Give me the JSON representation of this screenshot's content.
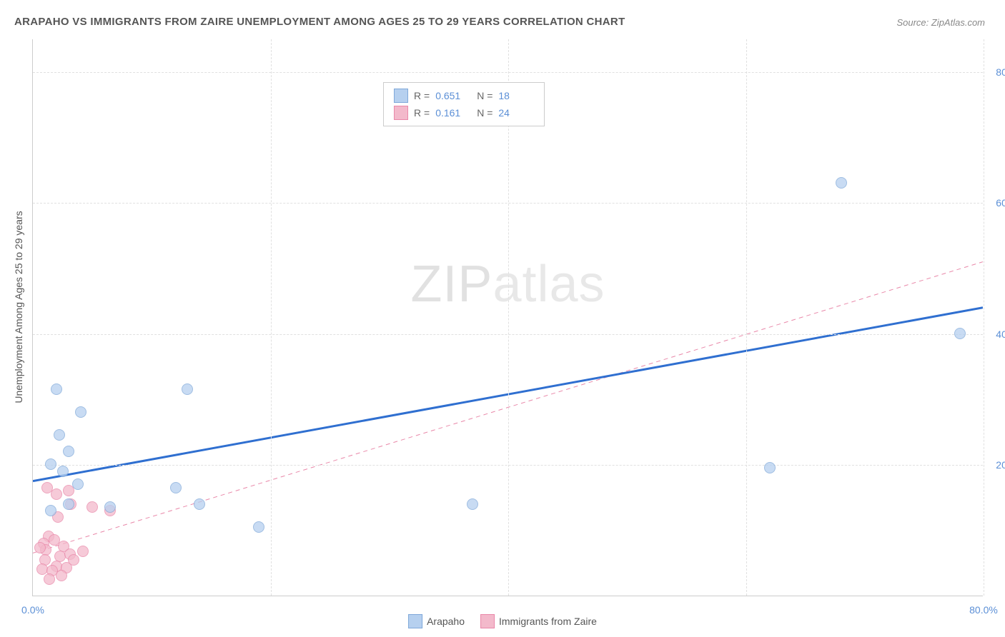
{
  "title": "ARAPAHO VS IMMIGRANTS FROM ZAIRE UNEMPLOYMENT AMONG AGES 25 TO 29 YEARS CORRELATION CHART",
  "source": "Source: ZipAtlas.com",
  "y_axis_label": "Unemployment Among Ages 25 to 29 years",
  "watermark_bold": "ZIP",
  "watermark_thin": "atlas",
  "chart": {
    "type": "scatter",
    "xlim": [
      0,
      80
    ],
    "ylim": [
      0,
      85
    ],
    "x_ticks": [
      0,
      20,
      40,
      60,
      80
    ],
    "y_ticks": [
      20,
      40,
      60,
      80
    ],
    "x_tick_labels": [
      "0.0%",
      "",
      "",
      "",
      "80.0%"
    ],
    "y_tick_labels": [
      "20.0%",
      "40.0%",
      "60.0%",
      "80.0%"
    ],
    "grid_color": "#e0e0e0",
    "background_color": "#ffffff",
    "axis_color": "#cccccc",
    "tick_label_color": "#5b8fd6",
    "tick_fontsize": 14,
    "marker_radius": 8,
    "marker_stroke_width": 1
  },
  "series": {
    "arapaho": {
      "label": "Arapaho",
      "fill": "#b6d0ef",
      "stroke": "#7fa8d9",
      "opacity": 0.75,
      "r_value": "0.651",
      "n_value": "18",
      "trend": {
        "x1": 0,
        "y1": 17.5,
        "x2": 80,
        "y2": 44,
        "stroke": "#2f6fd0",
        "width": 3,
        "dash": ""
      },
      "points": [
        [
          2,
          31.5
        ],
        [
          4,
          28
        ],
        [
          6.5,
          13.5
        ],
        [
          13,
          31.5
        ],
        [
          3,
          22
        ],
        [
          2.2,
          24.5
        ],
        [
          1.5,
          20
        ],
        [
          2.5,
          19
        ],
        [
          3.8,
          17
        ],
        [
          12,
          16.5
        ],
        [
          14,
          14
        ],
        [
          19,
          10.5
        ],
        [
          37,
          14
        ],
        [
          62,
          19.5
        ],
        [
          68,
          63
        ],
        [
          78,
          40
        ],
        [
          1.5,
          13
        ],
        [
          3,
          14
        ]
      ]
    },
    "zaire": {
      "label": "Immigrants from Zaire",
      "fill": "#f3b9cb",
      "stroke": "#e988a9",
      "opacity": 0.75,
      "r_value": "0.161",
      "n_value": "24",
      "trend": {
        "x1": 0,
        "y1": 6.5,
        "x2": 80,
        "y2": 51,
        "stroke": "#e988a9",
        "width": 1,
        "dash": "6,5"
      },
      "points": [
        [
          1.2,
          16.5
        ],
        [
          2,
          15.5
        ],
        [
          3,
          16
        ],
        [
          3.2,
          14
        ],
        [
          5,
          13.5
        ],
        [
          2.1,
          12
        ],
        [
          6.5,
          13
        ],
        [
          1.3,
          9
        ],
        [
          0.9,
          8
        ],
        [
          1.8,
          8.5
        ],
        [
          2.6,
          7.5
        ],
        [
          1.1,
          7
        ],
        [
          0.6,
          7.3
        ],
        [
          2.3,
          6
        ],
        [
          3.1,
          6.3
        ],
        [
          1.0,
          5.5
        ],
        [
          2.0,
          4.5
        ],
        [
          2.8,
          4.2
        ],
        [
          0.8,
          4
        ],
        [
          1.6,
          3.8
        ],
        [
          2.4,
          3
        ],
        [
          1.4,
          2.5
        ],
        [
          3.4,
          5.5
        ],
        [
          4.2,
          6.8
        ]
      ]
    }
  },
  "legend_top": {
    "r_label": "R =",
    "n_label": "N ="
  }
}
